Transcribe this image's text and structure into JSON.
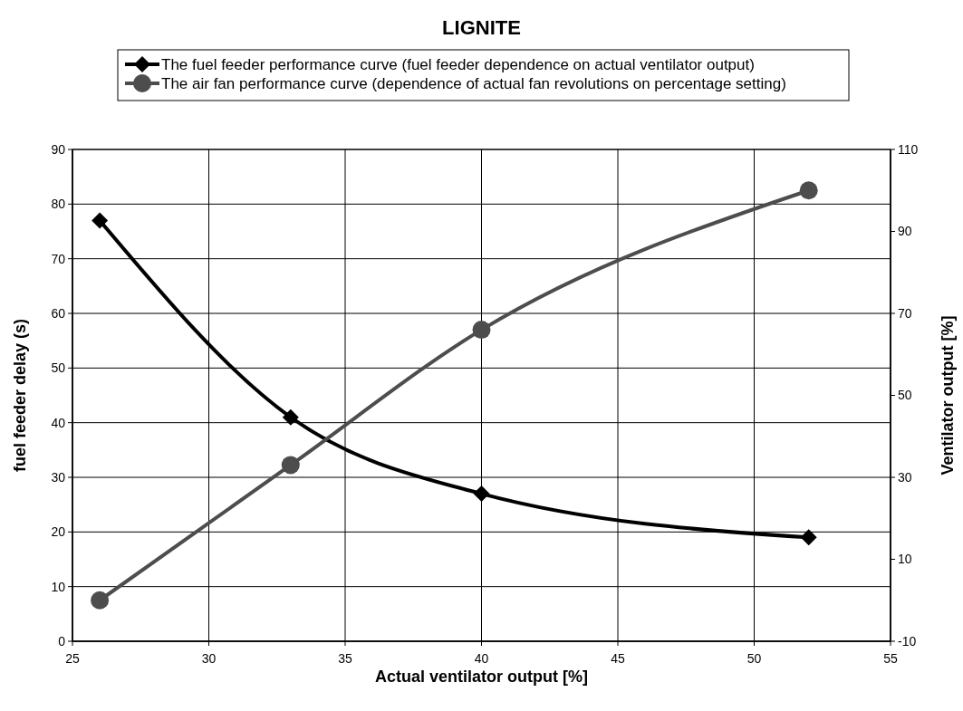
{
  "chart_data": {
    "type": "line",
    "title": "LIGNITE",
    "xlabel": "Actual ventilator output [%]",
    "ylabel": "fuel feeder delay (s)",
    "y2label": "Ventilator output [%]",
    "x": [
      26,
      33,
      40,
      52
    ],
    "series": [
      {
        "name": "The fuel feeder performance curve (fuel feeder dependence on actual ventilator output)",
        "color": "#000000",
        "values": [
          77,
          41,
          27,
          19
        ],
        "marker": "diamond"
      },
      {
        "name": "The air fan performance curve (dependence of actual fan revolutions on percentage setting)",
        "color": "#4d4d4d",
        "values": [
          0,
          33,
          66,
          100
        ],
        "marker": "circle",
        "axis": "y2"
      }
    ],
    "xlim": [
      25,
      55
    ],
    "xticks": [
      25,
      30,
      35,
      40,
      45,
      50,
      55
    ],
    "ylim": [
      0,
      90
    ],
    "yticks": [
      0,
      10,
      20,
      30,
      40,
      50,
      60,
      70,
      80,
      90
    ],
    "y2lim": [
      -10,
      110
    ],
    "y2ticks": [
      -10,
      10,
      30,
      50,
      70,
      90,
      110
    ],
    "grid": true,
    "legend": "top",
    "line_style": "solid"
  }
}
